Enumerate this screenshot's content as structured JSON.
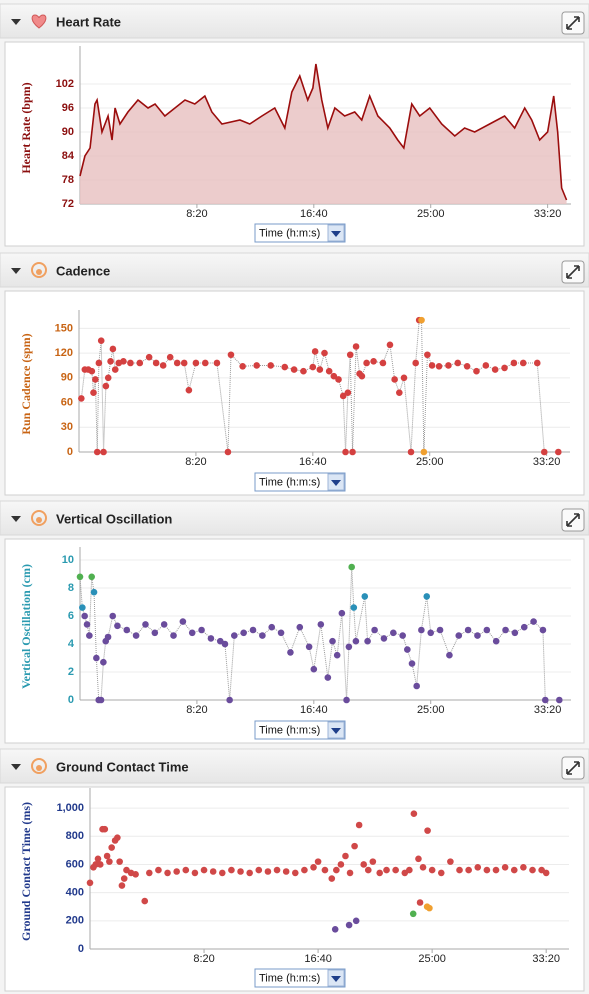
{
  "chart_data": [
    {
      "type": "area",
      "title": "Heart Rate",
      "ylabel": "Heart Rate (bpm)",
      "x_control": "Time (h:m:s)",
      "axis_color": "#8b0e0e",
      "color": "#9b0d0d",
      "fill": "#e9c3c3",
      "grid": true,
      "xlim": [
        0,
        2100
      ],
      "xticks": [
        {
          "value": 500,
          "label": "8:20"
        },
        {
          "value": 1000,
          "label": "16:40"
        },
        {
          "value": 1500,
          "label": "25:00"
        },
        {
          "value": 2000,
          "label": "33:20"
        }
      ],
      "ylim": [
        72,
        110
      ],
      "yticks": [
        72,
        78,
        84,
        90,
        96,
        102
      ],
      "x": [
        0,
        21,
        43,
        64,
        73,
        94,
        120,
        137,
        150,
        171,
        205,
        248,
        291,
        321,
        363,
        449,
        491,
        534,
        564,
        607,
        684,
        726,
        778,
        833,
        876,
        906,
        940,
        974,
        996,
        1009,
        1034,
        1060,
        1090,
        1132,
        1175,
        1205,
        1239,
        1274,
        1325,
        1359,
        1385,
        1419,
        1453,
        1496,
        1547,
        1603,
        1645,
        1688,
        1752,
        1816,
        1859,
        1902,
        1932,
        1966,
        2000,
        2026,
        2043,
        2060,
        2081
      ],
      "values": [
        79,
        84,
        86,
        97,
        98,
        90,
        94,
        88,
        96,
        92,
        95,
        98,
        96,
        97,
        94,
        98,
        97,
        99,
        95,
        92,
        93,
        92,
        94,
        96,
        91,
        100,
        104,
        98,
        101,
        107,
        98,
        91,
        96,
        94,
        95,
        93,
        99,
        94,
        91,
        88,
        86,
        97,
        94,
        96,
        92,
        89,
        91,
        90,
        92,
        94,
        91,
        96,
        93,
        88,
        90,
        99,
        90,
        76,
        73
      ]
    },
    {
      "type": "line",
      "title": "Cadence",
      "ylabel": "Run Cadence (spm)",
      "x_control": "Time (h:m:s)",
      "axis_color": "#c86414",
      "line_color": "#9a9a9a",
      "grid": true,
      "xlim": [
        0,
        2100
      ],
      "xticks": [
        {
          "value": 500,
          "label": "8:20"
        },
        {
          "value": 1000,
          "label": "16:40"
        },
        {
          "value": 1500,
          "label": "25:00"
        },
        {
          "value": 2000,
          "label": "33:20"
        }
      ],
      "ylim": [
        0,
        165
      ],
      "yticks": [
        0,
        30,
        60,
        90,
        120,
        150
      ],
      "x": [
        10,
        25,
        40,
        55,
        62,
        70,
        78,
        85,
        95,
        105,
        115,
        125,
        135,
        145,
        155,
        170,
        190,
        220,
        260,
        300,
        330,
        360,
        390,
        420,
        450,
        470,
        500,
        540,
        590,
        637,
        650,
        700,
        760,
        820,
        880,
        920,
        960,
        1000,
        1010,
        1030,
        1050,
        1070,
        1090,
        1110,
        1130,
        1140,
        1150,
        1160,
        1170,
        1185,
        1200,
        1210,
        1230,
        1260,
        1300,
        1330,
        1350,
        1370,
        1390,
        1420,
        1440,
        1455,
        1465,
        1475,
        1490,
        1510,
        1540,
        1580,
        1620,
        1660,
        1700,
        1740,
        1780,
        1820,
        1860,
        1900,
        1960,
        1990,
        2050
      ],
      "values": [
        65,
        100,
        100,
        98,
        72,
        88,
        0,
        108,
        135,
        0,
        80,
        90,
        110,
        125,
        100,
        108,
        110,
        108,
        108,
        115,
        108,
        105,
        115,
        108,
        108,
        75,
        108,
        108,
        108,
        0,
        118,
        104,
        105,
        105,
        103,
        100,
        98,
        103,
        122,
        100,
        120,
        98,
        92,
        88,
        68,
        0,
        72,
        118,
        0,
        128,
        95,
        92,
        108,
        110,
        108,
        130,
        88,
        72,
        90,
        0,
        108,
        160,
        160,
        0,
        118,
        105,
        104,
        105,
        108,
        104,
        98,
        105,
        100,
        102,
        108,
        108,
        108,
        0,
        0
      ],
      "colors": [
        "#d44040",
        "#d44040",
        "#d44040",
        "#d44040",
        "#d44040",
        "#d44040",
        "#d44040",
        "#d44040",
        "#d44040",
        "#d44040",
        "#d44040",
        "#d44040",
        "#d44040",
        "#d44040",
        "#d44040",
        "#d44040",
        "#d44040",
        "#d44040",
        "#d44040",
        "#d44040",
        "#d44040",
        "#d44040",
        "#d44040",
        "#d44040",
        "#d44040",
        "#d44040",
        "#d44040",
        "#d44040",
        "#d44040",
        "#d44040",
        "#d44040",
        "#d44040",
        "#d44040",
        "#d44040",
        "#d44040",
        "#d44040",
        "#d44040",
        "#d44040",
        "#d44040",
        "#d44040",
        "#d44040",
        "#d44040",
        "#d44040",
        "#d44040",
        "#d44040",
        "#d44040",
        "#d44040",
        "#d44040",
        "#d44040",
        "#d44040",
        "#d44040",
        "#d44040",
        "#d44040",
        "#d44040",
        "#d44040",
        "#d44040",
        "#d44040",
        "#d44040",
        "#d44040",
        "#d44040",
        "#d44040",
        "#d44040",
        "#f0a030",
        "#f0a030",
        "#d44040",
        "#d44040",
        "#d44040",
        "#d44040",
        "#d44040",
        "#d44040",
        "#d44040",
        "#d44040",
        "#d44040",
        "#d44040",
        "#d44040",
        "#d44040",
        "#d44040",
        "#d44040",
        "#d44040"
      ]
    },
    {
      "type": "line",
      "title": "Vertical Oscillation",
      "ylabel": "Vertical Oscillation (cm)",
      "x_control": "Time (h:m:s)",
      "axis_color": "#2a9ab0",
      "line_color": "#9a9a9a",
      "grid": true,
      "xlim": [
        0,
        2100
      ],
      "xticks": [
        {
          "value": 500,
          "label": "8:20"
        },
        {
          "value": 1000,
          "label": "16:40"
        },
        {
          "value": 1500,
          "label": "25:00"
        },
        {
          "value": 2000,
          "label": "33:20"
        }
      ],
      "ylim": [
        0,
        10.5
      ],
      "yticks": [
        0,
        2,
        4,
        6,
        8,
        10
      ],
      "x": [
        0,
        10,
        20,
        30,
        40,
        50,
        60,
        70,
        80,
        90,
        100,
        110,
        120,
        140,
        160,
        200,
        240,
        280,
        320,
        360,
        400,
        440,
        480,
        520,
        560,
        600,
        620,
        640,
        660,
        700,
        740,
        780,
        820,
        860,
        900,
        940,
        980,
        1000,
        1030,
        1060,
        1080,
        1100,
        1120,
        1140,
        1150,
        1162,
        1171,
        1180,
        1218,
        1230,
        1260,
        1300,
        1340,
        1380,
        1400,
        1420,
        1440,
        1460,
        1483,
        1500,
        1540,
        1580,
        1620,
        1660,
        1700,
        1740,
        1780,
        1820,
        1860,
        1900,
        1940,
        1980,
        1990,
        2050
      ],
      "values": [
        8.8,
        6.6,
        6,
        5.4,
        4.6,
        8.8,
        7.7,
        3,
        0,
        0,
        2.7,
        4.2,
        4.5,
        6,
        5.3,
        5,
        4.6,
        5.4,
        4.8,
        5.4,
        4.6,
        5.6,
        4.8,
        5,
        4.4,
        4.2,
        4,
        0,
        4.6,
        4.8,
        5,
        4.6,
        5.2,
        4.8,
        3.4,
        5.2,
        3.8,
        2.2,
        5.4,
        1.6,
        4.2,
        3.2,
        6.2,
        0,
        3.8,
        9.5,
        6.6,
        4.2,
        7.4,
        4.2,
        5,
        4.4,
        4.8,
        4.6,
        3.6,
        2.6,
        1,
        5,
        7.4,
        4.8,
        5,
        3.2,
        4.6,
        5,
        4.6,
        5,
        4.2,
        5,
        4.8,
        5.2,
        5.6,
        5,
        0,
        0
      ],
      "colors": [
        "#50b050",
        "#2a90b8",
        "#6a4c9c",
        "#6a4c9c",
        "#6a4c9c",
        "#50b050",
        "#2a90b8",
        "#6a4c9c",
        "#6a4c9c",
        "#6a4c9c",
        "#6a4c9c",
        "#6a4c9c",
        "#6a4c9c",
        "#6a4c9c",
        "#6a4c9c",
        "#6a4c9c",
        "#6a4c9c",
        "#6a4c9c",
        "#6a4c9c",
        "#6a4c9c",
        "#6a4c9c",
        "#6a4c9c",
        "#6a4c9c",
        "#6a4c9c",
        "#6a4c9c",
        "#6a4c9c",
        "#6a4c9c",
        "#6a4c9c",
        "#6a4c9c",
        "#6a4c9c",
        "#6a4c9c",
        "#6a4c9c",
        "#6a4c9c",
        "#6a4c9c",
        "#6a4c9c",
        "#6a4c9c",
        "#6a4c9c",
        "#6a4c9c",
        "#6a4c9c",
        "#6a4c9c",
        "#6a4c9c",
        "#6a4c9c",
        "#6a4c9c",
        "#6a4c9c",
        "#6a4c9c",
        "#50b050",
        "#2a90b8",
        "#6a4c9c",
        "#2a90b8",
        "#6a4c9c",
        "#6a4c9c",
        "#6a4c9c",
        "#6a4c9c",
        "#6a4c9c",
        "#6a4c9c",
        "#6a4c9c",
        "#6a4c9c",
        "#6a4c9c",
        "#2a90b8",
        "#6a4c9c",
        "#6a4c9c",
        "#6a4c9c",
        "#6a4c9c",
        "#6a4c9c",
        "#6a4c9c",
        "#6a4c9c",
        "#6a4c9c",
        "#6a4c9c",
        "#6a4c9c",
        "#6a4c9c",
        "#6a4c9c",
        "#6a4c9c",
        "#6a4c9c",
        "#6a4c9c"
      ]
    },
    {
      "type": "scatter",
      "title": "Ground Contact Time",
      "ylabel": "Ground Contact Time (ms)",
      "x_control": "Time (h:m:s)",
      "axis_color": "#223a8c",
      "grid": true,
      "xlim": [
        0,
        2100
      ],
      "xticks": [
        {
          "value": 500,
          "label": "8:20"
        },
        {
          "value": 1000,
          "label": "16:40"
        },
        {
          "value": 1500,
          "label": "25:00"
        },
        {
          "value": 2000,
          "label": "33:20"
        }
      ],
      "ylim": [
        0,
        1100
      ],
      "yticks": [
        0,
        200,
        400,
        600,
        800,
        {
          "value": 1000,
          "label": "1,000"
        }
      ],
      "x": [
        0,
        15,
        25,
        35,
        45,
        55,
        65,
        75,
        85,
        95,
        110,
        120,
        130,
        140,
        150,
        160,
        180,
        200,
        240,
        260,
        300,
        340,
        380,
        420,
        460,
        500,
        540,
        580,
        620,
        660,
        700,
        740,
        780,
        820,
        860,
        900,
        940,
        980,
        1000,
        1030,
        1060,
        1075,
        1080,
        1100,
        1120,
        1136,
        1140,
        1160,
        1167,
        1180,
        1200,
        1220,
        1240,
        1270,
        1300,
        1340,
        1380,
        1400,
        1417,
        1420,
        1440,
        1447,
        1460,
        1478,
        1480,
        1488,
        1500,
        1540,
        1580,
        1620,
        1660,
        1700,
        1740,
        1780,
        1820,
        1860,
        1900,
        1940,
        1980,
        2000
      ],
      "values": [
        470,
        580,
        600,
        640,
        600,
        850,
        850,
        660,
        620,
        720,
        770,
        790,
        620,
        450,
        500,
        560,
        540,
        530,
        340,
        540,
        560,
        540,
        550,
        560,
        540,
        560,
        550,
        540,
        560,
        550,
        540,
        560,
        550,
        560,
        550,
        540,
        560,
        580,
        620,
        560,
        500,
        140,
        560,
        600,
        660,
        170,
        540,
        730,
        200,
        880,
        600,
        560,
        620,
        540,
        560,
        560,
        540,
        560,
        250,
        960,
        640,
        330,
        580,
        300,
        840,
        290,
        560,
        540,
        620,
        560,
        560,
        580,
        560,
        560,
        580,
        560,
        580,
        560,
        560,
        540
      ],
      "colors": [
        "#d04848",
        "#d04848",
        "#d04848",
        "#d04848",
        "#d04848",
        "#d04848",
        "#d04848",
        "#d04848",
        "#d04848",
        "#d04848",
        "#d04848",
        "#d04848",
        "#d04848",
        "#d04848",
        "#d04848",
        "#d04848",
        "#d04848",
        "#d04848",
        "#d04848",
        "#d04848",
        "#d04848",
        "#d04848",
        "#d04848",
        "#d04848",
        "#d04848",
        "#d04848",
        "#d04848",
        "#d04848",
        "#d04848",
        "#d04848",
        "#d04848",
        "#d04848",
        "#d04848",
        "#d04848",
        "#d04848",
        "#d04848",
        "#d04848",
        "#d04848",
        "#d04848",
        "#d04848",
        "#d04848",
        "#6a4c9c",
        "#d04848",
        "#d04848",
        "#d04848",
        "#6a4c9c",
        "#d04848",
        "#d04848",
        "#6a4c9c",
        "#d04848",
        "#d04848",
        "#d04848",
        "#d04848",
        "#d04848",
        "#d04848",
        "#d04848",
        "#d04848",
        "#d04848",
        "#50b050",
        "#d04848",
        "#d04848",
        "#d04848",
        "#d04848",
        "#f0a030",
        "#d04848",
        "#f0a030",
        "#d04848",
        "#d04848",
        "#d04848",
        "#d04848",
        "#d04848",
        "#d04848",
        "#d04848",
        "#d04848",
        "#d04848",
        "#d04848",
        "#d04848",
        "#d04848",
        "#d04848",
        "#d04848"
      ]
    }
  ]
}
